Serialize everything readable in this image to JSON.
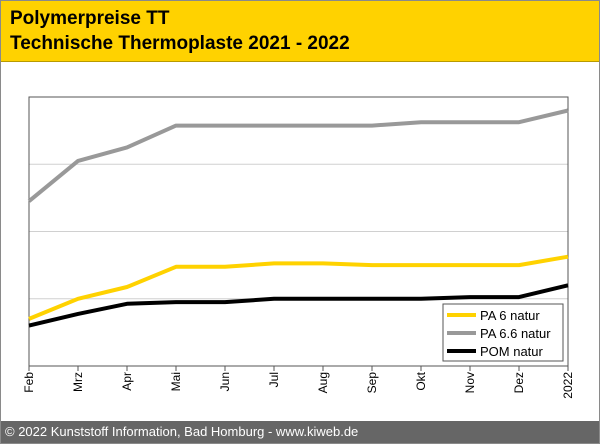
{
  "header": {
    "title": "Polymerpreise TT",
    "subtitle": "Technische Thermoplaste 2021 - 2022"
  },
  "footer": {
    "copyright": "© 2022 Kunststoff Information, Bad Homburg - www.kiweb.de"
  },
  "colors": {
    "header_bg": "#ffd200",
    "footer_bg": "#666666"
  },
  "chart_data": {
    "type": "line",
    "title": "Technische Thermoplaste 2021 - 2022",
    "xlabel": "",
    "ylabel": "",
    "categories": [
      "Feb",
      "Mrz",
      "Apr",
      "Mai",
      "Jun",
      "Jul",
      "Aug",
      "Sep",
      "Okt",
      "Nov",
      "Dez",
      "2022"
    ],
    "ylim": [
      0,
      8
    ],
    "y_ticks": [
      2,
      4,
      6
    ],
    "y_tick_labels_visible": false,
    "grid": "horizontal",
    "legend_position": "bottom-right",
    "series": [
      {
        "name": "PA 6 natur",
        "color": "#ffd200",
        "values": [
          1.4,
          2.0,
          2.35,
          2.95,
          2.95,
          3.05,
          3.05,
          3.0,
          3.0,
          3.0,
          3.0,
          3.25
        ]
      },
      {
        "name": "PA 6.6 natur",
        "color": "#999999",
        "values": [
          4.9,
          6.1,
          6.5,
          7.15,
          7.15,
          7.15,
          7.15,
          7.15,
          7.25,
          7.25,
          7.25,
          7.6
        ]
      },
      {
        "name": "POM natur",
        "color": "#000000",
        "values": [
          1.2,
          1.55,
          1.85,
          1.9,
          1.9,
          2.0,
          2.0,
          2.0,
          2.0,
          2.05,
          2.05,
          2.4
        ]
      }
    ]
  }
}
